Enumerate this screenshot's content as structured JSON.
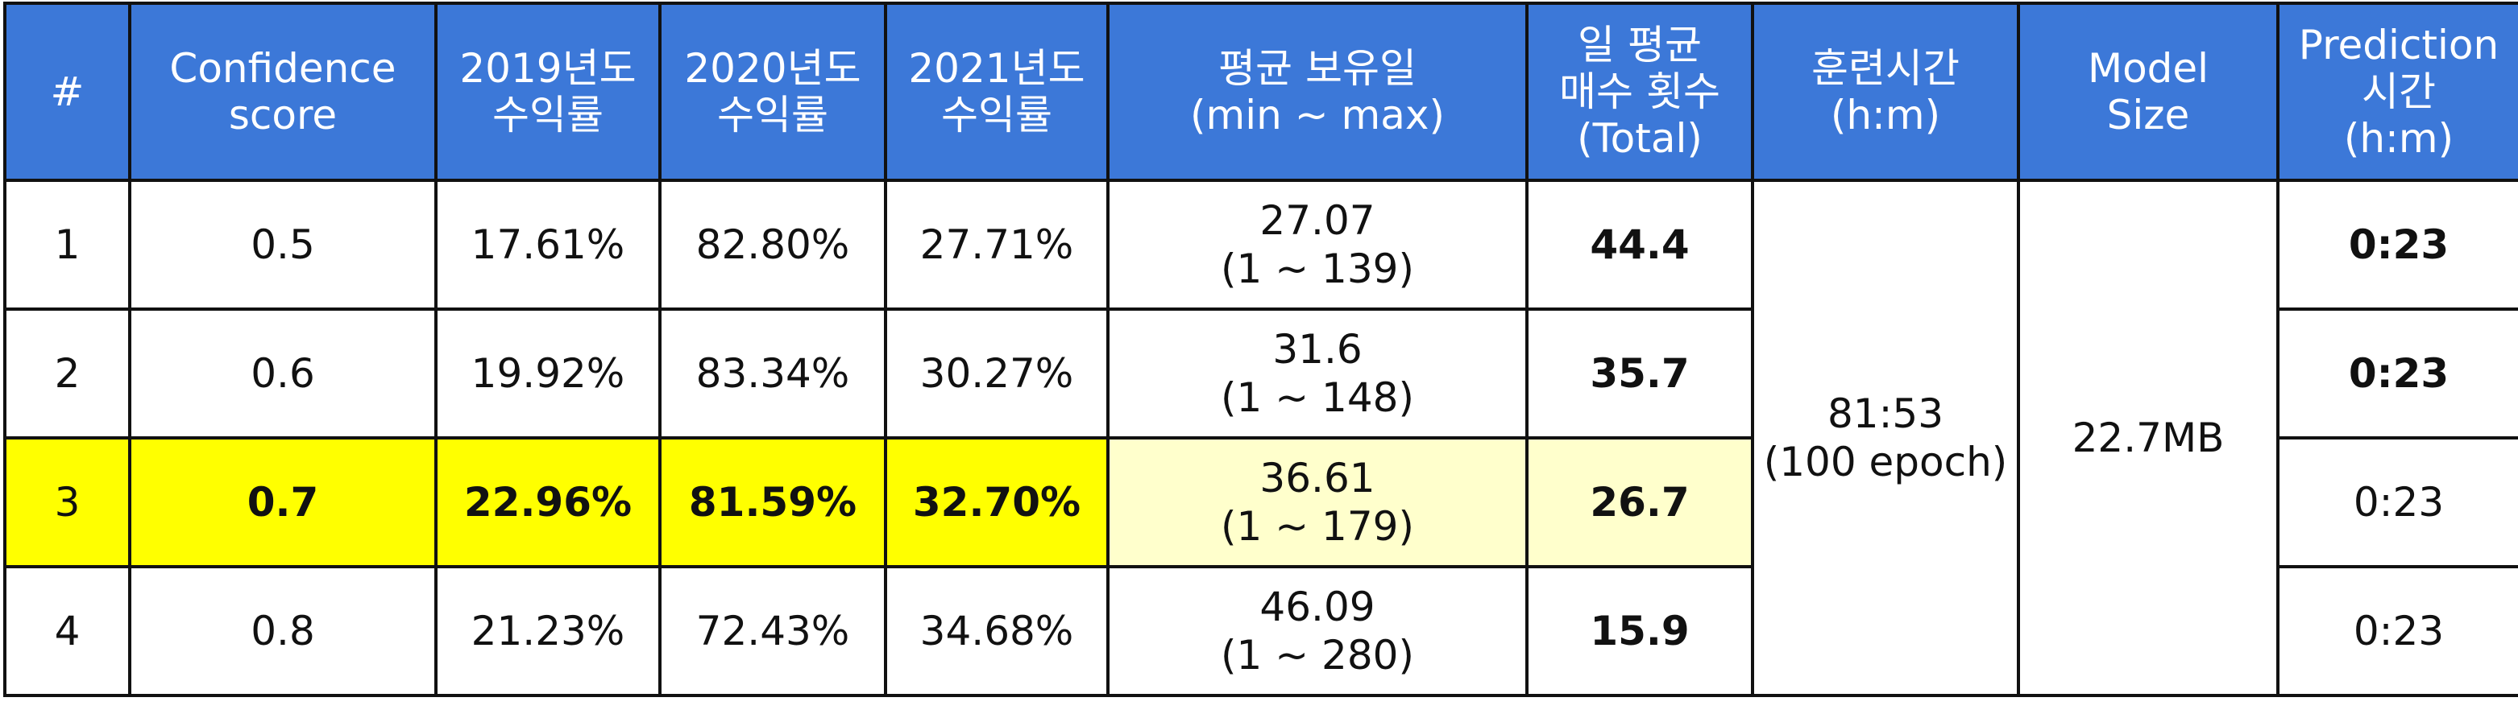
{
  "headers": [
    {
      "lines": [
        "#"
      ]
    },
    {
      "lines": [
        "Confidence",
        "score"
      ]
    },
    {
      "lines": [
        "2019년도",
        "수익률"
      ]
    },
    {
      "lines": [
        "2020년도",
        "수익률"
      ]
    },
    {
      "lines": [
        "2021년도",
        "수익률"
      ]
    },
    {
      "lines": [
        "평균 보유일",
        "(min ~ max)"
      ]
    },
    {
      "lines": [
        "일 평균",
        "매수 횟수",
        "(Total)"
      ]
    },
    {
      "lines": [
        "훈련시간",
        "(h:m)"
      ]
    },
    {
      "lines": [
        "Model",
        "Size"
      ]
    },
    {
      "lines": [
        "Prediction",
        "시간",
        "(h:m)"
      ]
    }
  ],
  "rows": [
    {
      "num": "1",
      "confidence": "0.5",
      "y2019": "17.61%",
      "y2020": "82.80%",
      "y2021": "27.71%",
      "hold_avg": "27.07",
      "hold_range": "(1 ~ 139)",
      "buys": "44.4",
      "prediction": "0:23",
      "highlight": false
    },
    {
      "num": "2",
      "confidence": "0.6",
      "y2019": "19.92%",
      "y2020": "83.34%",
      "y2021": "30.27%",
      "hold_avg": "31.6",
      "hold_range": "(1 ~ 148)",
      "buys": "35.7",
      "prediction": "0:23",
      "highlight": false
    },
    {
      "num": "3",
      "confidence": "0.7",
      "y2019": "22.96%",
      "y2020": "81.59%",
      "y2021": "32.70%",
      "hold_avg": "36.61",
      "hold_range": "(1 ~ 179)",
      "buys": "26.7",
      "prediction": "0:23",
      "highlight": true
    },
    {
      "num": "4",
      "confidence": "0.8",
      "y2019": "21.23%",
      "y2020": "72.43%",
      "y2021": "34.68%",
      "hold_avg": "46.09",
      "hold_range": "(1 ~ 280)",
      "buys": "15.9",
      "prediction": "0:23",
      "highlight": false
    }
  ],
  "training_time": {
    "value": "81:53",
    "note": "(100 epoch)"
  },
  "model_size": "22.7MB",
  "colors": {
    "header_bg": "#3c78d8",
    "highlight": "#ffff00",
    "highlight_light": "#ffffcc",
    "border": "#111111"
  }
}
